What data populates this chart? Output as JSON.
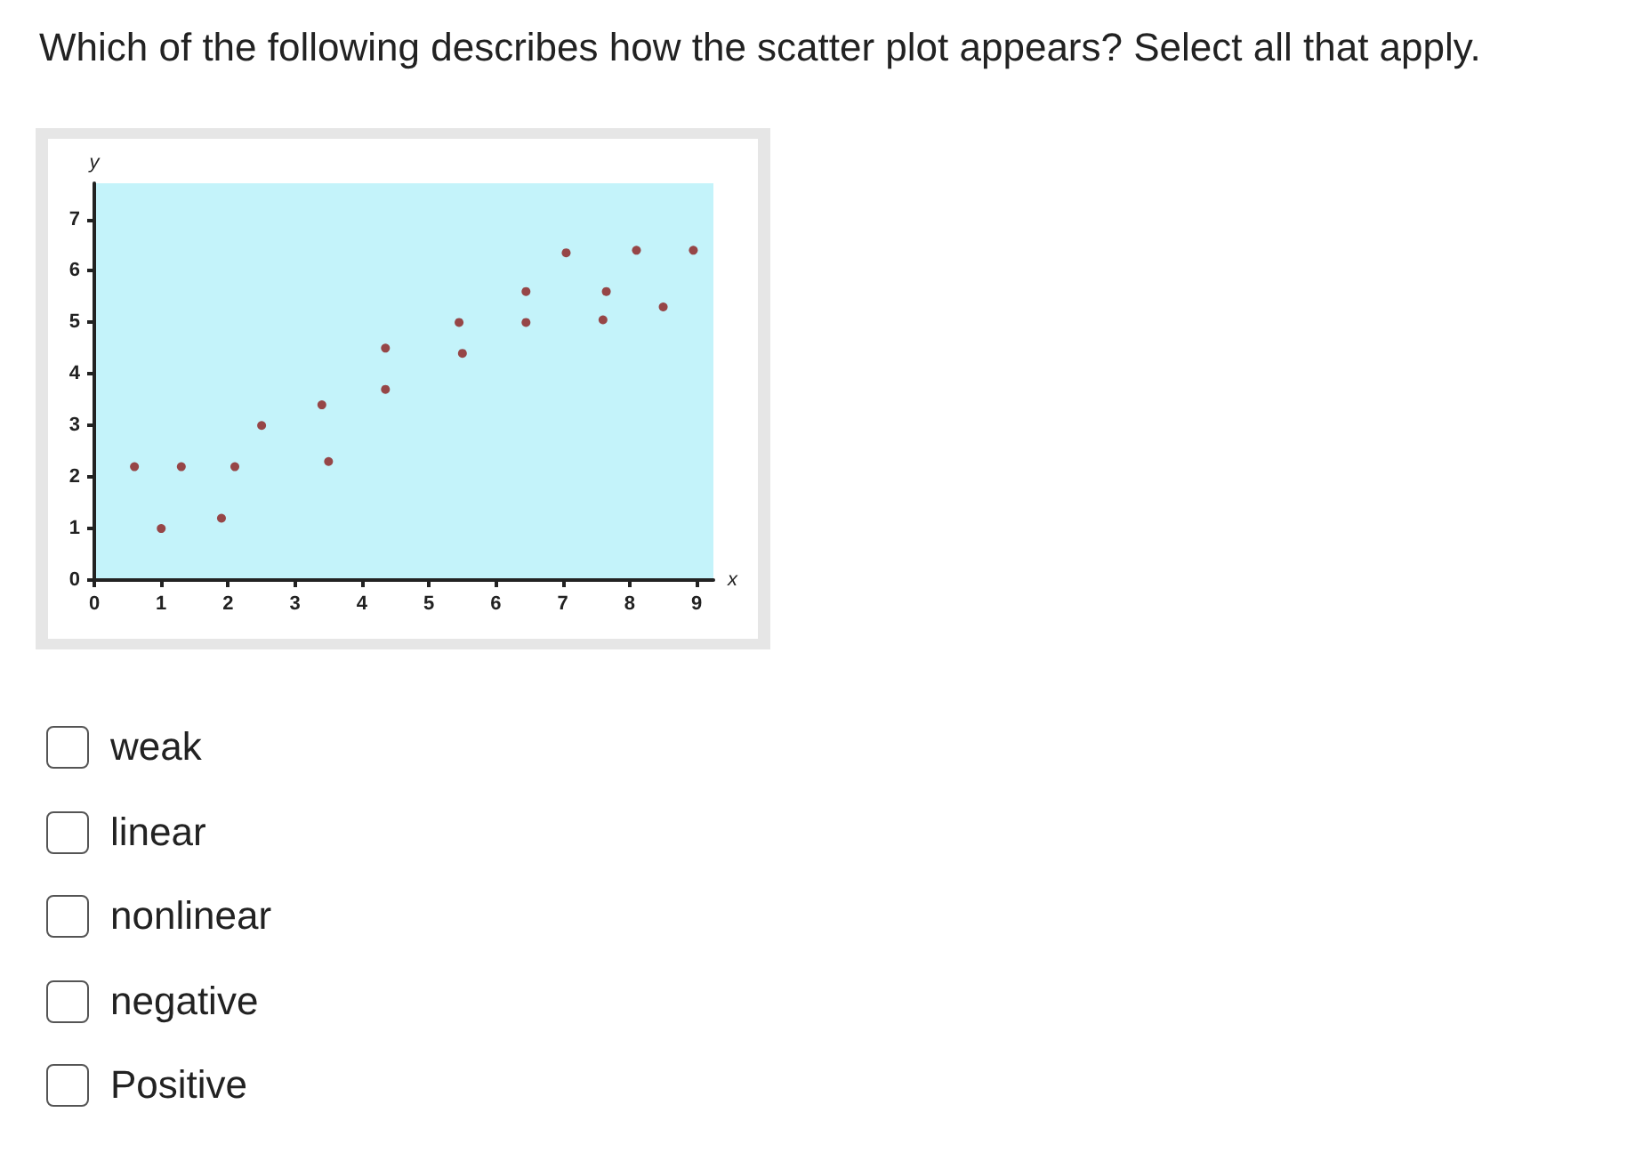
{
  "chart_data": {
    "type": "scatter",
    "title": "Which of the following describes how the scatter plot appears? Select all that apply.",
    "xlabel": "x",
    "ylabel": "y",
    "x": [
      0.6,
      1.0,
      1.3,
      1.9,
      2.1,
      2.5,
      3.4,
      3.5,
      4.35,
      4.35,
      5.45,
      5.5,
      6.45,
      6.45,
      7.05,
      7.6,
      7.65,
      8.1,
      8.5,
      8.95
    ],
    "values": [
      2.2,
      1.0,
      2.2,
      1.2,
      2.2,
      3.0,
      3.4,
      2.3,
      4.5,
      3.7,
      5.0,
      4.4,
      5.6,
      5.0,
      6.35,
      5.05,
      5.6,
      6.4,
      5.3,
      6.4
    ],
    "color": "#8b1a1a",
    "marker": "circle",
    "grid": false,
    "xlim": [
      0,
      9.25
    ],
    "xticks": [
      0,
      1,
      2,
      3,
      4,
      5,
      6,
      7,
      8,
      9
    ],
    "ylim": [
      0,
      7.7
    ],
    "yticks": [
      0,
      1,
      2,
      3,
      4,
      5,
      6,
      7
    ],
    "annotations": [
      "weak",
      "linear",
      "nonlinear",
      "negative",
      "Positive"
    ]
  }
}
